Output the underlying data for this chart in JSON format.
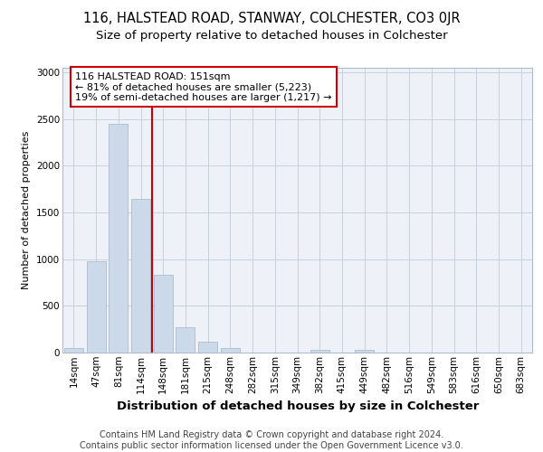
{
  "title1": "116, HALSTEAD ROAD, STANWAY, COLCHESTER, CO3 0JR",
  "title2": "Size of property relative to detached houses in Colchester",
  "xlabel": "Distribution of detached houses by size in Colchester",
  "ylabel": "Number of detached properties",
  "categories": [
    "14sqm",
    "47sqm",
    "81sqm",
    "114sqm",
    "148sqm",
    "181sqm",
    "215sqm",
    "248sqm",
    "282sqm",
    "315sqm",
    "349sqm",
    "382sqm",
    "415sqm",
    "449sqm",
    "482sqm",
    "516sqm",
    "549sqm",
    "583sqm",
    "616sqm",
    "650sqm",
    "683sqm"
  ],
  "values": [
    50,
    980,
    2450,
    1650,
    830,
    275,
    115,
    50,
    0,
    0,
    0,
    30,
    0,
    25,
    0,
    0,
    0,
    0,
    0,
    0,
    0
  ],
  "bar_color": "#ccd9e8",
  "bar_edgecolor": "#aabdd4",
  "vline_x_index": 3.5,
  "vline_color": "#cc0000",
  "annotation_text": "116 HALSTEAD ROAD: 151sqm\n← 81% of detached houses are smaller (5,223)\n19% of semi-detached houses are larger (1,217) →",
  "annotation_box_facecolor": "#ffffff",
  "annotation_box_edgecolor": "#cc0000",
  "ylim": [
    0,
    3050
  ],
  "yticks": [
    0,
    500,
    1000,
    1500,
    2000,
    2500,
    3000
  ],
  "footnote": "Contains HM Land Registry data © Crown copyright and database right 2024.\nContains public sector information licensed under the Open Government Licence v3.0.",
  "title1_fontsize": 10.5,
  "title2_fontsize": 9.5,
  "xlabel_fontsize": 9.5,
  "ylabel_fontsize": 8,
  "tick_fontsize": 7.5,
  "annotation_fontsize": 8,
  "footnote_fontsize": 7,
  "bg_color": "#eef2f8"
}
